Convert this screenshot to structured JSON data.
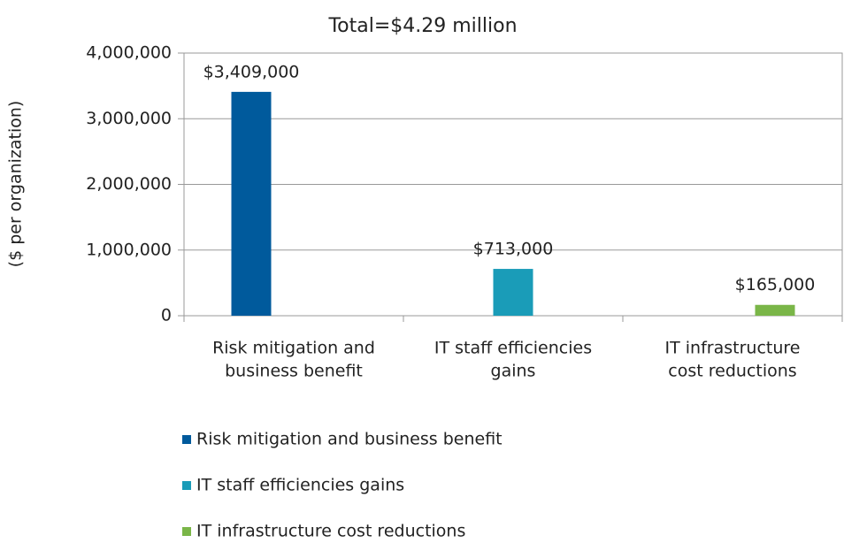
{
  "chart_data": {
    "type": "bar",
    "title": "Total=$4.29  million",
    "y_label": "($ per organization)",
    "categories": [
      [
        "Risk mitigation and",
        "business benefit"
      ],
      [
        "IT staff efficiencies",
        "gains"
      ],
      [
        "IT infrastructure",
        "cost reductions"
      ]
    ],
    "series": [
      {
        "name": "Risk mitigation and business benefit",
        "color": "#005a9c",
        "values": [
          3409000,
          null,
          null
        ],
        "value_labels": [
          "$3,409,000",
          null,
          null
        ]
      },
      {
        "name": "IT staff efficiencies gains",
        "color": "#1a9cb8",
        "values": [
          null,
          713000,
          null
        ],
        "value_labels": [
          null,
          "$713,000",
          null
        ]
      },
      {
        "name": "IT infrastructure cost reductions",
        "color": "#7ab648",
        "values": [
          null,
          null,
          165000
        ],
        "value_labels": [
          null,
          null,
          "$165,000"
        ]
      }
    ],
    "ylim": [
      0,
      4000000
    ],
    "yticks": [
      0,
      {
        "value": 1000000,
        "label": "1,000,000"
      },
      {
        "value": 2000000,
        "label": "2,000,000"
      },
      {
        "value": 3000000,
        "label": "3,000,000"
      },
      {
        "value": 4000000,
        "label": "4,000,000"
      }
    ],
    "grid": true,
    "legend": "bottom"
  }
}
